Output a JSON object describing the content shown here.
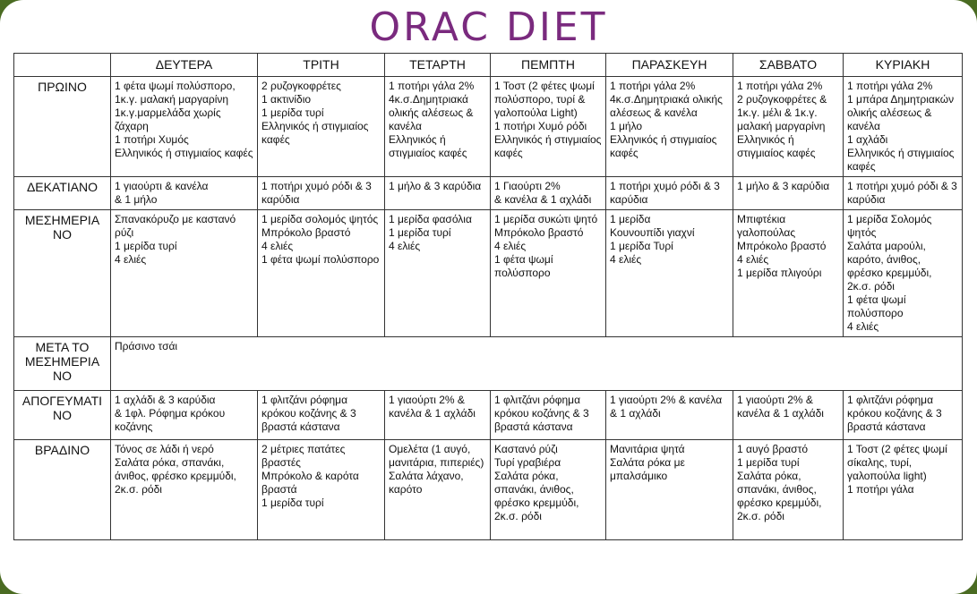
{
  "title": "ORAC DIET",
  "days": [
    "ΔΕΥΤΕΡΑ",
    "ΤΡΙΤΗ",
    "ΤΕΤΑΡΤΗ",
    "ΠΕΜΠΤΗ",
    "ΠΑΡΑΣΚΕΥΗ",
    "ΣΑΒΒΑΤΟ",
    "ΚΥΡΙΑΚΗ"
  ],
  "meals": [
    {
      "label": "ΠΡΩΙΝΟ",
      "cells": [
        "1 φέτα ψωμί πολύσπορο,\n1κ.γ. μαλακή μαργαρίνη\n1κ.γ.μαρμελάδα χωρίς ζάχαρη\n1 ποτήρι Χυμός\nΕλληνικός ή στιγμιαίος καφές",
        "2 ρυζογκοφρέτες\n1 ακτινίδιο\n1 μερίδα τυρί\nΕλληνικός ή στιγμιαίος καφές",
        "1 ποτήρι γάλα 2%\n4κ.σ.Δημητριακά ολικής αλέσεως & κανέλα\nΕλληνικός ή στιγμιαίος καφές",
        "1 Τοστ (2 φέτες ψωμί πολύσπορο, τυρί & γαλοπούλα Light)\n1 ποτήρι Χυμό ρόδι\nΕλληνικός ή στιγμιαίος καφές",
        "1 ποτήρι γάλα 2%\n4κ.σ.Δημητριακά ολικής αλέσεως & κανέλα\n1 μήλο\nΕλληνικός ή στιγμιαίος καφές",
        "1 ποτήρι γάλα 2%\n2 ρυζογκοφρέτες &\n1κ.γ. μέλι & 1κ.γ. μαλακή μαργαρίνη\nΕλληνικός ή στιγμιαίος καφές",
        "1 ποτήρι γάλα 2%\n1 μπάρα Δημητριακών ολικής αλέσεως & κανέλα\n1 αχλάδι\nΕλληνικός ή στιγμιαίος καφές"
      ]
    },
    {
      "label": "ΔΕΚΑΤΙΑΝΟ",
      "cells": [
        "1 γιαούρτι & κανέλα\n& 1 μήλο",
        "1 ποτήρι χυμό ρόδι & 3 καρύδια",
        "1 μήλο & 3 καρύδια",
        "1 Γιαούρτι 2%\n& κανέλα & 1 αχλάδι",
        "1 ποτήρι χυμό ρόδι & 3 καρύδια",
        "1 μήλο & 3 καρύδια",
        "1 ποτήρι χυμό ρόδι & 3 καρύδια"
      ]
    },
    {
      "label": "ΜΕΣΗΜΕΡΙΑ\nΝΟ",
      "cells": [
        "Σπανακόρυζο με καστανό ρύζι\n1 μερίδα τυρί\n4 ελιές",
        "1 μερίδα σολομός ψητός\nΜπρόκολο βραστό\n4 ελιές\n1 φέτα ψωμί πολύσπορο",
        "1 μερίδα φασόλια\n1 μερίδα τυρί\n4 ελιές",
        "1 μερίδα συκώτι ψητό\nΜπρόκολο βραστό\n4 ελιές\n1 φέτα ψωμί πολύσπορο",
        "1 μερίδα\nΚουνουπίδι γιαχνί\n1 μερίδα Τυρί\n4 ελιές",
        "Μπιφτέκια γαλοπούλας\nΜπρόκολο βραστό\n4 ελιές\n1 μερίδα πλιγούρι",
        "1 μερίδα Σολομός ψητός\nΣαλάτα μαρούλι, καρότο, άνιθος, φρέσκο κρεμμύδι, 2κ.σ. ρόδι\n1 φέτα ψωμί πολύσπορο\n4 ελιές"
      ]
    },
    {
      "label": "ΜΕΤΑ ΤΟ\nΜΕΣΗΜΕΡΙΑ\nΝΟ",
      "note": "Πράσινο τσάι"
    },
    {
      "label": "ΑΠΟΓΕΥΜΑΤΙ\nΝΟ",
      "cells": [
        "1 αχλάδι & 3 καρύδια\n& 1φλ. Ρόφημα κρόκου κοζάνης",
        "1 φλιτζάνι ρόφημα κρόκου κοζάνης & 3 βραστά κάστανα",
        "1 γιαούρτι 2% & κανέλα & 1 αχλάδι",
        "1 φλιτζάνι ρόφημα κρόκου κοζάνης & 3 βραστά κάστανα",
        "1 γιαούρτι 2% & κανέλα & 1 αχλάδι",
        "1 γιαούρτι 2% & κανέλα & 1 αχλάδι",
        "1 φλιτζάνι ρόφημα κρόκου κοζάνης & 3 βραστά κάστανα"
      ]
    },
    {
      "label": "ΒΡΑΔΙΝΟ",
      "cells": [
        "Τόνος σε λάδι ή νερό\nΣαλάτα ρόκα, σπανάκι, άνιθος, φρέσκο κρεμμύδι, 2κ.σ. ρόδι",
        "2 μέτριες πατάτες βραστές\nΜπρόκολο & καρότα βραστά\n1 μερίδα τυρί",
        "Ομελέτα (1 αυγό, μανιτάρια, πιπεριές)\nΣαλάτα λάχανο, καρότο",
        "Καστανό ρύζι\nΤυρί γραβιέρα\nΣαλάτα ρόκα, σπανάκι, άνιθος, φρέσκο κρεμμύδι, 2κ.σ. ρόδι",
        "Μανιτάρια ψητά\nΣαλάτα ρόκα με μπαλσάμικο",
        "1 αυγό βραστό\n1 μερίδα τυρί\nΣαλάτα ρόκα, σπανάκι, άνιθος, φρέσκο κρεμμύδι, 2κ.σ. ρόδι",
        "1 Τοστ (2 φέτες ψωμί σίκαλης, τυρί, γαλοπούλα light)\n1 ποτήρι γάλα"
      ]
    }
  ],
  "colors": {
    "background": "#4a6b22",
    "title": "#7a2a7e",
    "border": "#333333"
  }
}
